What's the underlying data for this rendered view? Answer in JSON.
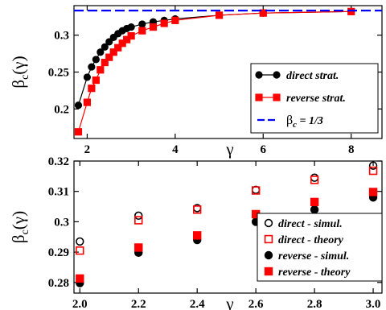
{
  "chart_data": [
    {
      "type": "line",
      "xlabel": "γ",
      "ylabel": "β_c(γ)",
      "xlim": [
        1.7,
        8.7
      ],
      "ylim": [
        0.16,
        0.34
      ],
      "x_ticks": [
        {
          "label": "2",
          "value": 2
        },
        {
          "label": "4",
          "value": 4
        },
        {
          "label": "6",
          "value": 6
        },
        {
          "label": "8",
          "value": 8
        }
      ],
      "y_ticks": [
        {
          "label": "0.2",
          "value": 0.2
        },
        {
          "label": "0.25",
          "value": 0.25
        },
        {
          "label": "0.3",
          "value": 0.3
        }
      ],
      "legend_position": "bottom-right",
      "legend": [
        {
          "label": "direct strat.",
          "color": "#000000",
          "marker": "circle"
        },
        {
          "label": "reverse strat.",
          "color": "#ff0000",
          "marker": "square"
        },
        {
          "label_prefix": "β",
          "label_sub": "c",
          "label_suffix": " = 1/3",
          "color": "#0000ff",
          "marker": "dash"
        }
      ],
      "series": [
        {
          "key": "direct",
          "color": "#000000",
          "marker": "circle",
          "x": [
            1.8,
            2.0,
            2.1,
            2.2,
            2.3,
            2.4,
            2.5,
            2.6,
            2.7,
            2.8,
            2.9,
            3.0,
            3.25,
            3.5,
            3.75,
            4.0,
            5.0,
            6.0,
            8.0
          ],
          "y": [
            0.205,
            0.243,
            0.257,
            0.267,
            0.277,
            0.284,
            0.291,
            0.297,
            0.302,
            0.306,
            0.309,
            0.311,
            0.315,
            0.318,
            0.32,
            0.322,
            0.327,
            0.33,
            0.332
          ]
        },
        {
          "key": "reverse",
          "color": "#ff0000",
          "marker": "square",
          "x": [
            1.8,
            2.0,
            2.1,
            2.2,
            2.3,
            2.4,
            2.5,
            2.6,
            2.7,
            2.8,
            2.9,
            3.0,
            3.25,
            3.5,
            3.75,
            4.0,
            5.0,
            6.0,
            8.0
          ],
          "y": [
            0.169,
            0.209,
            0.228,
            0.239,
            0.253,
            0.263,
            0.27,
            0.277,
            0.283,
            0.289,
            0.294,
            0.299,
            0.306,
            0.311,
            0.316,
            0.32,
            0.327,
            0.33,
            0.332
          ]
        },
        {
          "key": "limit",
          "color": "#0000ff",
          "style": "dashed",
          "y_constant": 0.3333
        }
      ]
    },
    {
      "type": "scatter",
      "xlabel": "γ",
      "ylabel": "β_c(γ)",
      "xlim": [
        1.98,
        3.03
      ],
      "ylim": [
        0.2765,
        0.32
      ],
      "x_ticks": [
        {
          "label": "2.0",
          "value": 2.0
        },
        {
          "label": "2.2",
          "value": 2.2
        },
        {
          "label": "2.4",
          "value": 2.4
        },
        {
          "label": "2.6",
          "value": 2.6
        },
        {
          "label": "2.8",
          "value": 2.8
        },
        {
          "label": "3.0",
          "value": 3.0
        }
      ],
      "y_ticks": [
        {
          "label": "0.28",
          "value": 0.28
        },
        {
          "label": "0.29",
          "value": 0.29
        },
        {
          "label": "0.3",
          "value": 0.3
        },
        {
          "label": "0.31",
          "value": 0.31
        },
        {
          "label": "0.32",
          "value": 0.32
        }
      ],
      "legend_position": "bottom-right",
      "legend": [
        {
          "label": "direct - simul.",
          "color": "#000000",
          "marker": "open-circle"
        },
        {
          "label": "direct - theory",
          "color": "#ff0000",
          "marker": "open-square"
        },
        {
          "label": "reverse - simul.",
          "color": "#000000",
          "marker": "circle"
        },
        {
          "label": "reverse - theory",
          "color": "#ff0000",
          "marker": "square"
        }
      ],
      "series": [
        {
          "key": "direct-simul",
          "color": "#000000",
          "marker": "open-circle",
          "x": [
            2.0,
            2.2,
            2.4,
            2.6,
            2.8,
            3.0
          ],
          "y": [
            0.2935,
            0.302,
            0.3045,
            0.3105,
            0.3145,
            0.3185
          ]
        },
        {
          "key": "direct-theory",
          "color": "#ff0000",
          "marker": "open-square",
          "x": [
            2.0,
            2.2,
            2.4,
            2.6,
            2.8,
            3.0
          ],
          "y": [
            0.2905,
            0.3005,
            0.304,
            0.3103,
            0.3138,
            0.3168
          ]
        },
        {
          "key": "reverse-simul",
          "color": "#000000",
          "marker": "circle",
          "x": [
            2.0,
            2.2,
            2.4,
            2.6,
            2.8,
            3.0
          ],
          "y": [
            0.2798,
            0.2898,
            0.294,
            0.3,
            0.304,
            0.308
          ]
        },
        {
          "key": "reverse-theory",
          "color": "#ff0000",
          "marker": "square",
          "x": [
            2.0,
            2.2,
            2.4,
            2.6,
            2.8,
            3.0
          ],
          "y": [
            0.2813,
            0.2915,
            0.2955,
            0.3025,
            0.3065,
            0.3098
          ]
        }
      ]
    }
  ]
}
